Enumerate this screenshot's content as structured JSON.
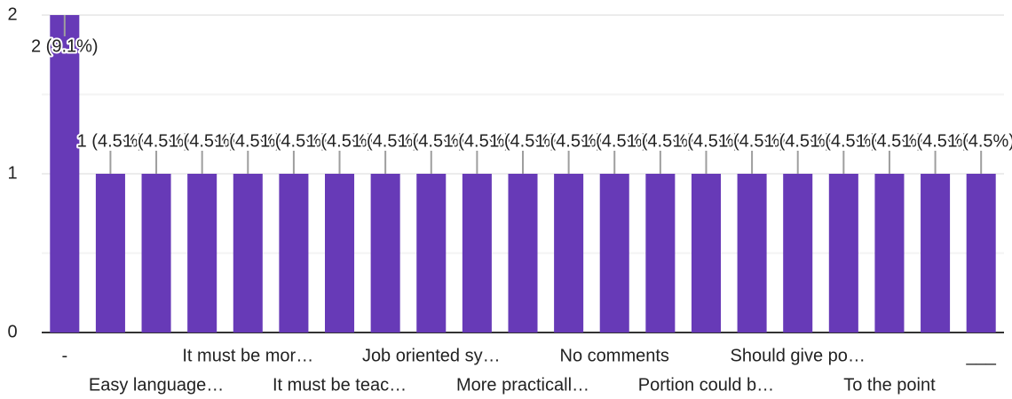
{
  "chart_data": {
    "type": "bar",
    "categories": [
      "-",
      null,
      "Easy language…",
      null,
      "It must be mor…",
      null,
      "It must be teac…",
      null,
      "Job oriented sy…",
      null,
      "More practicall…",
      null,
      "No comments",
      null,
      "Portion could b…",
      null,
      "Should give po…",
      null,
      "To the point",
      null,
      "___"
    ],
    "values": [
      2,
      1,
      1,
      1,
      1,
      1,
      1,
      1,
      1,
      1,
      1,
      1,
      1,
      1,
      1,
      1,
      1,
      1,
      1,
      1,
      1
    ],
    "value_labels": [
      "2 (9.1%)",
      "1 (4.5%)",
      "1 (4.5%)",
      "1 (4.5%)",
      "1 (4.5%)",
      "1 (4.5%)",
      "1 (4.5%)",
      "1 (4.5%)",
      "1 (4.5%)",
      "1 (4.5%)",
      "1 (4.5%)",
      "1 (4.5%)",
      "1 (4.5%)",
      "1 (4.5%)",
      "1 (4.5%)",
      "1 (4.5%)",
      "1 (4.5%)",
      "1 (4.5%)",
      "1 (4.5%)",
      "1 (4.5%)",
      "1 (4.5%)"
    ],
    "color": "#673ab7",
    "ylim": [
      0,
      2
    ],
    "yticks": [
      0,
      1,
      2
    ],
    "minor_yticks": [
      0.5,
      1.5
    ],
    "grid": true
  }
}
